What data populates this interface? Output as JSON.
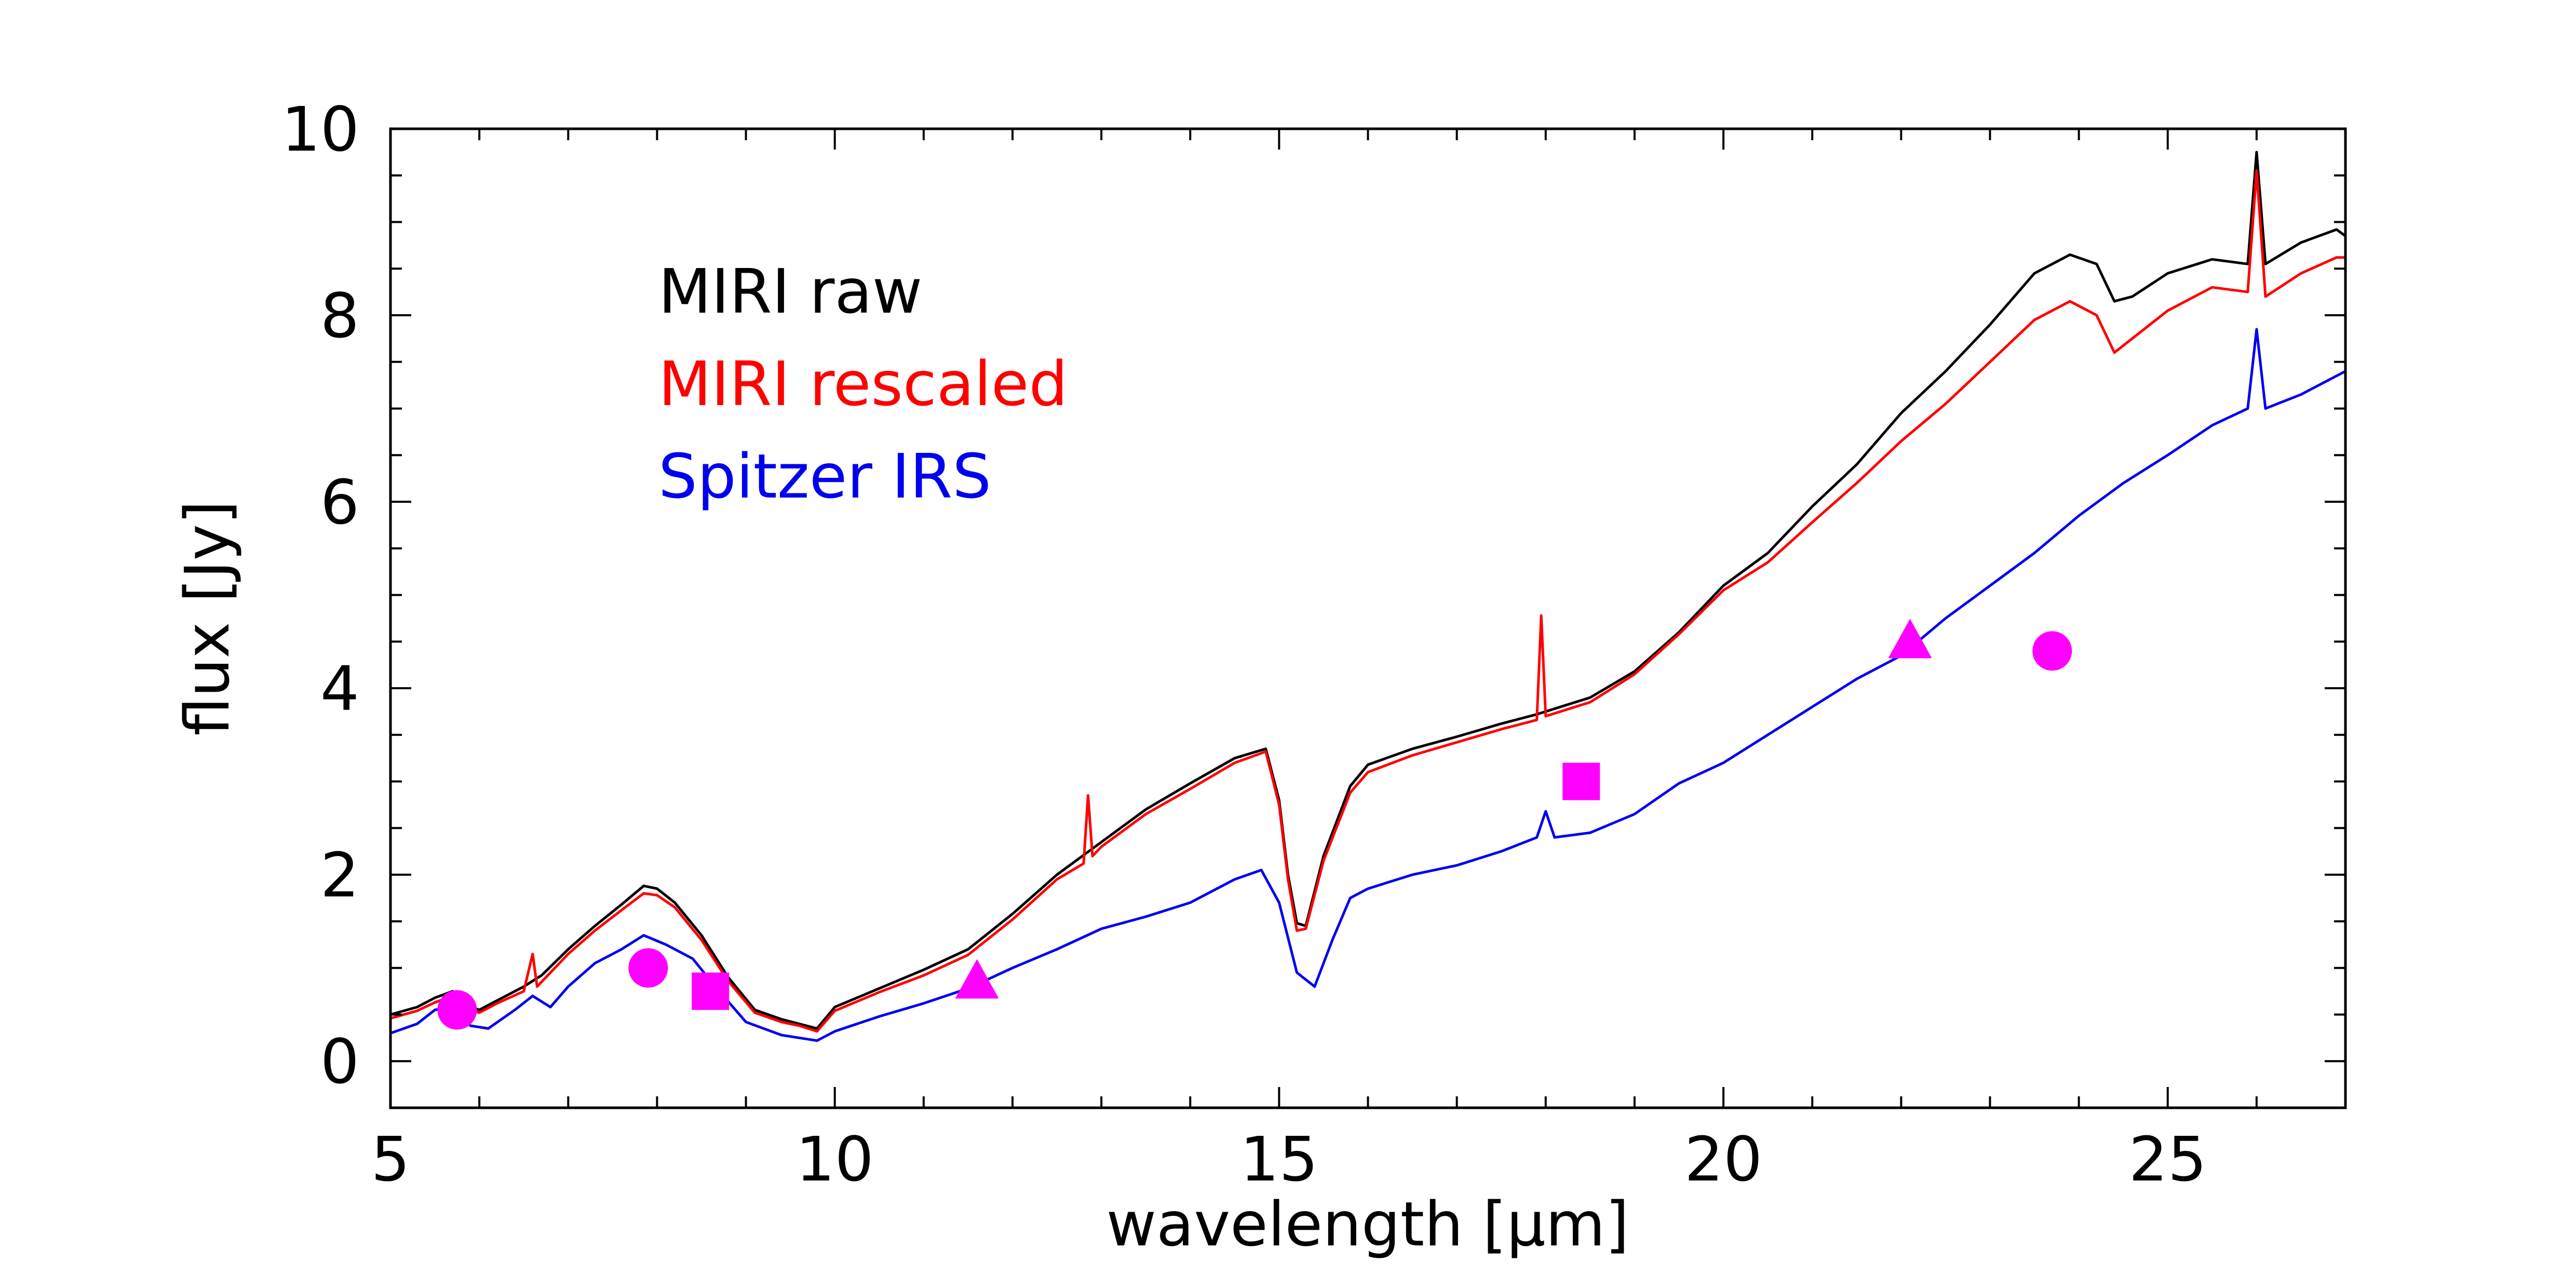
{
  "chart_data": {
    "type": "line",
    "title": "",
    "xlabel": "wavelength [μm]",
    "ylabel": "flux [Jy]",
    "xlim": [
      5,
      27
    ],
    "ylim": [
      -0.5,
      10
    ],
    "x_ticks": [
      5,
      10,
      15,
      20,
      25
    ],
    "x_tick_labels": [
      "5",
      "10",
      "15",
      "20",
      "25"
    ],
    "y_ticks": [
      0,
      2,
      4,
      6,
      8,
      10
    ],
    "y_tick_labels": [
      "0",
      "2",
      "4",
      "6",
      "8",
      "10"
    ],
    "x_minor_step": 1,
    "y_minor_step": 0.5,
    "grid": false,
    "legend_position": "top-left",
    "series": [
      {
        "name": "MIRI raw",
        "color": "#000000",
        "points": [
          [
            5.0,
            0.5
          ],
          [
            5.3,
            0.58
          ],
          [
            5.5,
            0.68
          ],
          [
            5.7,
            0.75
          ],
          [
            5.85,
            0.6
          ],
          [
            6.0,
            0.55
          ],
          [
            6.2,
            0.65
          ],
          [
            6.5,
            0.8
          ],
          [
            6.7,
            0.92
          ],
          [
            7.0,
            1.2
          ],
          [
            7.3,
            1.45
          ],
          [
            7.6,
            1.68
          ],
          [
            7.85,
            1.88
          ],
          [
            8.0,
            1.85
          ],
          [
            8.2,
            1.7
          ],
          [
            8.5,
            1.35
          ],
          [
            8.8,
            0.9
          ],
          [
            9.1,
            0.55
          ],
          [
            9.4,
            0.45
          ],
          [
            9.6,
            0.4
          ],
          [
            9.8,
            0.35
          ],
          [
            10.0,
            0.58
          ],
          [
            10.5,
            0.78
          ],
          [
            11.0,
            0.98
          ],
          [
            11.5,
            1.2
          ],
          [
            12.0,
            1.58
          ],
          [
            12.5,
            2.0
          ],
          [
            13.0,
            2.35
          ],
          [
            13.5,
            2.7
          ],
          [
            14.0,
            2.98
          ],
          [
            14.5,
            3.25
          ],
          [
            14.85,
            3.35
          ],
          [
            15.0,
            2.8
          ],
          [
            15.1,
            2.0
          ],
          [
            15.2,
            1.48
          ],
          [
            15.3,
            1.45
          ],
          [
            15.5,
            2.2
          ],
          [
            15.8,
            2.95
          ],
          [
            16.0,
            3.18
          ],
          [
            16.5,
            3.35
          ],
          [
            17.0,
            3.48
          ],
          [
            17.5,
            3.62
          ],
          [
            17.9,
            3.72
          ],
          [
            18.0,
            3.75
          ],
          [
            18.5,
            3.9
          ],
          [
            19.0,
            4.18
          ],
          [
            19.5,
            4.6
          ],
          [
            20.0,
            5.1
          ],
          [
            20.5,
            5.45
          ],
          [
            21.0,
            5.95
          ],
          [
            21.5,
            6.4
          ],
          [
            22.0,
            6.95
          ],
          [
            22.5,
            7.4
          ],
          [
            23.0,
            7.9
          ],
          [
            23.5,
            8.45
          ],
          [
            23.9,
            8.65
          ],
          [
            24.2,
            8.55
          ],
          [
            24.4,
            8.15
          ],
          [
            24.6,
            8.2
          ],
          [
            25.0,
            8.45
          ],
          [
            25.5,
            8.6
          ],
          [
            25.9,
            8.55
          ],
          [
            26.0,
            9.75
          ],
          [
            26.1,
            8.55
          ],
          [
            26.5,
            8.78
          ],
          [
            26.9,
            8.92
          ],
          [
            27.0,
            8.85
          ]
        ]
      },
      {
        "name": "MIRI rescaled",
        "color": "#ff0000",
        "points": [
          [
            5.0,
            0.46
          ],
          [
            5.3,
            0.54
          ],
          [
            5.5,
            0.63
          ],
          [
            5.7,
            0.7
          ],
          [
            5.85,
            0.56
          ],
          [
            6.0,
            0.52
          ],
          [
            6.2,
            0.62
          ],
          [
            6.5,
            0.75
          ],
          [
            6.6,
            1.15
          ],
          [
            6.65,
            0.8
          ],
          [
            7.0,
            1.15
          ],
          [
            7.3,
            1.4
          ],
          [
            7.6,
            1.62
          ],
          [
            7.85,
            1.8
          ],
          [
            8.0,
            1.78
          ],
          [
            8.2,
            1.65
          ],
          [
            8.5,
            1.3
          ],
          [
            8.8,
            0.86
          ],
          [
            9.1,
            0.52
          ],
          [
            9.4,
            0.42
          ],
          [
            9.6,
            0.38
          ],
          [
            9.8,
            0.32
          ],
          [
            10.0,
            0.54
          ],
          [
            10.5,
            0.74
          ],
          [
            11.0,
            0.92
          ],
          [
            11.5,
            1.14
          ],
          [
            12.0,
            1.52
          ],
          [
            12.5,
            1.95
          ],
          [
            12.8,
            2.12
          ],
          [
            12.85,
            2.85
          ],
          [
            12.9,
            2.2
          ],
          [
            13.0,
            2.3
          ],
          [
            13.5,
            2.65
          ],
          [
            14.0,
            2.92
          ],
          [
            14.5,
            3.2
          ],
          [
            14.85,
            3.32
          ],
          [
            15.0,
            2.75
          ],
          [
            15.1,
            1.95
          ],
          [
            15.2,
            1.4
          ],
          [
            15.3,
            1.42
          ],
          [
            15.5,
            2.15
          ],
          [
            15.8,
            2.88
          ],
          [
            16.0,
            3.1
          ],
          [
            16.5,
            3.28
          ],
          [
            17.0,
            3.42
          ],
          [
            17.5,
            3.56
          ],
          [
            17.9,
            3.66
          ],
          [
            17.95,
            4.78
          ],
          [
            18.0,
            3.7
          ],
          [
            18.5,
            3.85
          ],
          [
            19.0,
            4.15
          ],
          [
            19.5,
            4.58
          ],
          [
            20.0,
            5.05
          ],
          [
            20.5,
            5.35
          ],
          [
            21.0,
            5.78
          ],
          [
            21.5,
            6.2
          ],
          [
            22.0,
            6.65
          ],
          [
            22.5,
            7.05
          ],
          [
            23.0,
            7.5
          ],
          [
            23.5,
            7.95
          ],
          [
            23.9,
            8.15
          ],
          [
            24.2,
            8.0
          ],
          [
            24.4,
            7.6
          ],
          [
            24.6,
            7.75
          ],
          [
            25.0,
            8.05
          ],
          [
            25.5,
            8.3
          ],
          [
            25.9,
            8.25
          ],
          [
            26.0,
            9.55
          ],
          [
            26.1,
            8.2
          ],
          [
            26.5,
            8.45
          ],
          [
            26.9,
            8.62
          ],
          [
            27.0,
            8.62
          ]
        ]
      },
      {
        "name": "Spitzer IRS",
        "color": "#0000ee",
        "points": [
          [
            5.0,
            0.3
          ],
          [
            5.3,
            0.4
          ],
          [
            5.5,
            0.55
          ],
          [
            5.7,
            0.58
          ],
          [
            5.9,
            0.38
          ],
          [
            6.1,
            0.35
          ],
          [
            6.4,
            0.55
          ],
          [
            6.6,
            0.7
          ],
          [
            6.8,
            0.58
          ],
          [
            7.0,
            0.8
          ],
          [
            7.3,
            1.05
          ],
          [
            7.6,
            1.2
          ],
          [
            7.85,
            1.35
          ],
          [
            8.1,
            1.25
          ],
          [
            8.4,
            1.1
          ],
          [
            8.7,
            0.75
          ],
          [
            9.0,
            0.42
          ],
          [
            9.4,
            0.28
          ],
          [
            9.8,
            0.22
          ],
          [
            10.0,
            0.32
          ],
          [
            10.5,
            0.48
          ],
          [
            11.0,
            0.62
          ],
          [
            11.5,
            0.78
          ],
          [
            12.0,
            1.0
          ],
          [
            12.5,
            1.2
          ],
          [
            13.0,
            1.42
          ],
          [
            13.5,
            1.55
          ],
          [
            14.0,
            1.7
          ],
          [
            14.5,
            1.95
          ],
          [
            14.8,
            2.05
          ],
          [
            15.0,
            1.7
          ],
          [
            15.2,
            0.95
          ],
          [
            15.4,
            0.8
          ],
          [
            15.6,
            1.3
          ],
          [
            15.8,
            1.75
          ],
          [
            16.0,
            1.85
          ],
          [
            16.5,
            2.0
          ],
          [
            17.0,
            2.1
          ],
          [
            17.5,
            2.25
          ],
          [
            17.9,
            2.4
          ],
          [
            18.0,
            2.68
          ],
          [
            18.1,
            2.4
          ],
          [
            18.5,
            2.45
          ],
          [
            19.0,
            2.65
          ],
          [
            19.5,
            2.98
          ],
          [
            20.0,
            3.2
          ],
          [
            20.5,
            3.5
          ],
          [
            21.0,
            3.8
          ],
          [
            21.5,
            4.1
          ],
          [
            22.0,
            4.35
          ],
          [
            22.5,
            4.75
          ],
          [
            23.0,
            5.1
          ],
          [
            23.5,
            5.45
          ],
          [
            24.0,
            5.85
          ],
          [
            24.5,
            6.2
          ],
          [
            25.0,
            6.5
          ],
          [
            25.5,
            6.82
          ],
          [
            25.9,
            7.0
          ],
          [
            26.0,
            7.85
          ],
          [
            26.1,
            7.0
          ],
          [
            26.5,
            7.15
          ],
          [
            27.0,
            7.4
          ]
        ]
      }
    ],
    "markers": [
      {
        "shape": "circle",
        "x": 5.75,
        "y": 0.55,
        "color": "#ff00ff"
      },
      {
        "shape": "circle",
        "x": 7.9,
        "y": 1.0,
        "color": "#ff00ff"
      },
      {
        "shape": "square",
        "x": 8.6,
        "y": 0.75,
        "color": "#ff00ff"
      },
      {
        "shape": "triangle",
        "x": 11.6,
        "y": 0.85,
        "color": "#ff00ff"
      },
      {
        "shape": "square",
        "x": 18.4,
        "y": 3.0,
        "color": "#ff00ff"
      },
      {
        "shape": "triangle",
        "x": 22.1,
        "y": 4.5,
        "color": "#ff00ff"
      },
      {
        "shape": "circle",
        "x": 23.7,
        "y": 4.4,
        "color": "#ff00ff"
      }
    ],
    "legend": [
      {
        "label": "MIRI raw",
        "color": "#000000"
      },
      {
        "label": "MIRI rescaled",
        "color": "#ff0000"
      },
      {
        "label": "Spitzer IRS",
        "color": "#0000ee"
      }
    ]
  }
}
